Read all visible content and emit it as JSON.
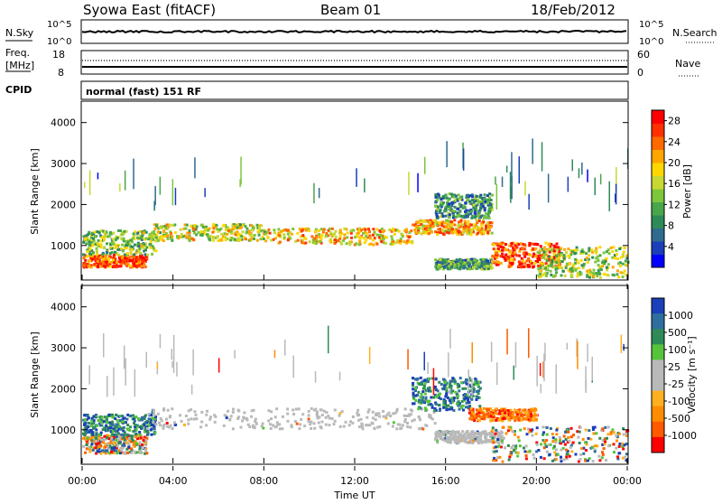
{
  "header": {
    "station": "Syowa East (fitACF)",
    "beam": "Beam 01",
    "date": "18/Feb/2012"
  },
  "top_panels": {
    "nsky_label": "N.Sky",
    "nsearch_label": "N.Search",
    "log_scale": {
      "top": "10^5",
      "bottom": "10^0"
    },
    "freq_label_top": "Freq.",
    "freq_label_bottom": "[MHz]",
    "freq_ticks": [
      "18",
      "8"
    ],
    "nave_label": "Nave",
    "nave_ticks": [
      "60",
      "0"
    ],
    "cpid_label": "CPID",
    "cpid_value": "normal (fast) 151 RF"
  },
  "colors": {
    "power_scale": [
      "#0000ff",
      "#1a3fb8",
      "#2f6b8f",
      "#2e8b57",
      "#4aa64a",
      "#7cc63c",
      "#c8d832",
      "#ffd700",
      "#ffa500",
      "#ff6a00",
      "#ff3000",
      "#ff0000"
    ],
    "velocity_scale": [
      "#1a3fb8",
      "#2f6f9f",
      "#2e8b57",
      "#55c43a",
      "#b9b9b9",
      "#b9b9b9",
      "#ffb020",
      "#ff8c00",
      "#ff5a00",
      "#ff0000"
    ],
    "ground_scatter": "#b9b9b9"
  },
  "chart_data": [
    {
      "type": "heatmap",
      "name_hint": "power panel",
      "xlabel": "",
      "ylabel": "Slant Range [km]",
      "x_ticks": [
        "00:00",
        "04:00",
        "08:00",
        "12:00",
        "16:00",
        "20:00",
        "00:00"
      ],
      "y_ticks": [
        "1000",
        "2000",
        "3000",
        "4000"
      ],
      "xlim_hours": [
        0,
        24
      ],
      "ylim_km": [
        180,
        4500
      ],
      "colorbar_label": "Power [dB]",
      "colorbar_ticks": [
        "4",
        "8",
        "12",
        "16",
        "20",
        "24",
        "28"
      ],
      "colorbar_range": [
        0,
        30
      ],
      "bands": [
        {
          "t0": 0.0,
          "t1": 2.8,
          "r0": 500,
          "r1": 800,
          "level": 0.85
        },
        {
          "t0": 0.0,
          "t1": 3.2,
          "r0": 800,
          "r1": 1400,
          "level": 0.45
        },
        {
          "t0": 3.0,
          "t1": 8.0,
          "r0": 1150,
          "r1": 1550,
          "level": 0.55
        },
        {
          "t0": 8.0,
          "t1": 14.5,
          "r0": 1050,
          "r1": 1450,
          "level": 0.65
        },
        {
          "t0": 14.5,
          "t1": 18.0,
          "r0": 1300,
          "r1": 1650,
          "level": 0.7
        },
        {
          "t0": 15.5,
          "t1": 18.0,
          "r0": 1700,
          "r1": 2300,
          "level": 0.3
        },
        {
          "t0": 15.5,
          "t1": 18.0,
          "r0": 450,
          "r1": 700,
          "level": 0.35
        },
        {
          "t0": 18.0,
          "t1": 21.0,
          "r0": 500,
          "r1": 1100,
          "level": 0.85
        },
        {
          "t0": 20.0,
          "t1": 24.0,
          "r0": 250,
          "r1": 1000,
          "level": 0.5
        }
      ]
    },
    {
      "type": "heatmap",
      "name_hint": "velocity panel",
      "xlabel": "Time UT",
      "ylabel": "Slant Range [km]",
      "x_ticks": [
        "00:00",
        "04:00",
        "08:00",
        "12:00",
        "16:00",
        "20:00",
        "00:00"
      ],
      "y_ticks": [
        "1000",
        "2000",
        "3000",
        "4000"
      ],
      "xlim_hours": [
        0,
        24
      ],
      "ylim_km": [
        180,
        4500
      ],
      "colorbar_label": "Velocity [m s⁻¹]",
      "colorbar_ticks": [
        "1000",
        "500",
        "100",
        "25",
        "-25",
        "-100",
        "-500",
        "-1000"
      ],
      "bands": [
        {
          "t0": 0.0,
          "t1": 2.8,
          "r0": 450,
          "r1": 900,
          "kind": "mixed"
        },
        {
          "t0": 0.0,
          "t1": 3.2,
          "r0": 900,
          "r1": 1400,
          "kind": "positive"
        },
        {
          "t0": 2.8,
          "t1": 15.5,
          "r0": 1050,
          "r1": 1550,
          "kind": "ground"
        },
        {
          "t0": 14.5,
          "t1": 17.5,
          "r0": 1500,
          "r1": 2300,
          "kind": "positive"
        },
        {
          "t0": 15.5,
          "t1": 18.5,
          "r0": 700,
          "r1": 1000,
          "kind": "ground"
        },
        {
          "t0": 17.0,
          "t1": 20.0,
          "r0": 1250,
          "r1": 1550,
          "kind": "negative"
        },
        {
          "t0": 18.0,
          "t1": 24.0,
          "r0": 250,
          "r1": 1100,
          "kind": "mixed"
        }
      ]
    }
  ]
}
